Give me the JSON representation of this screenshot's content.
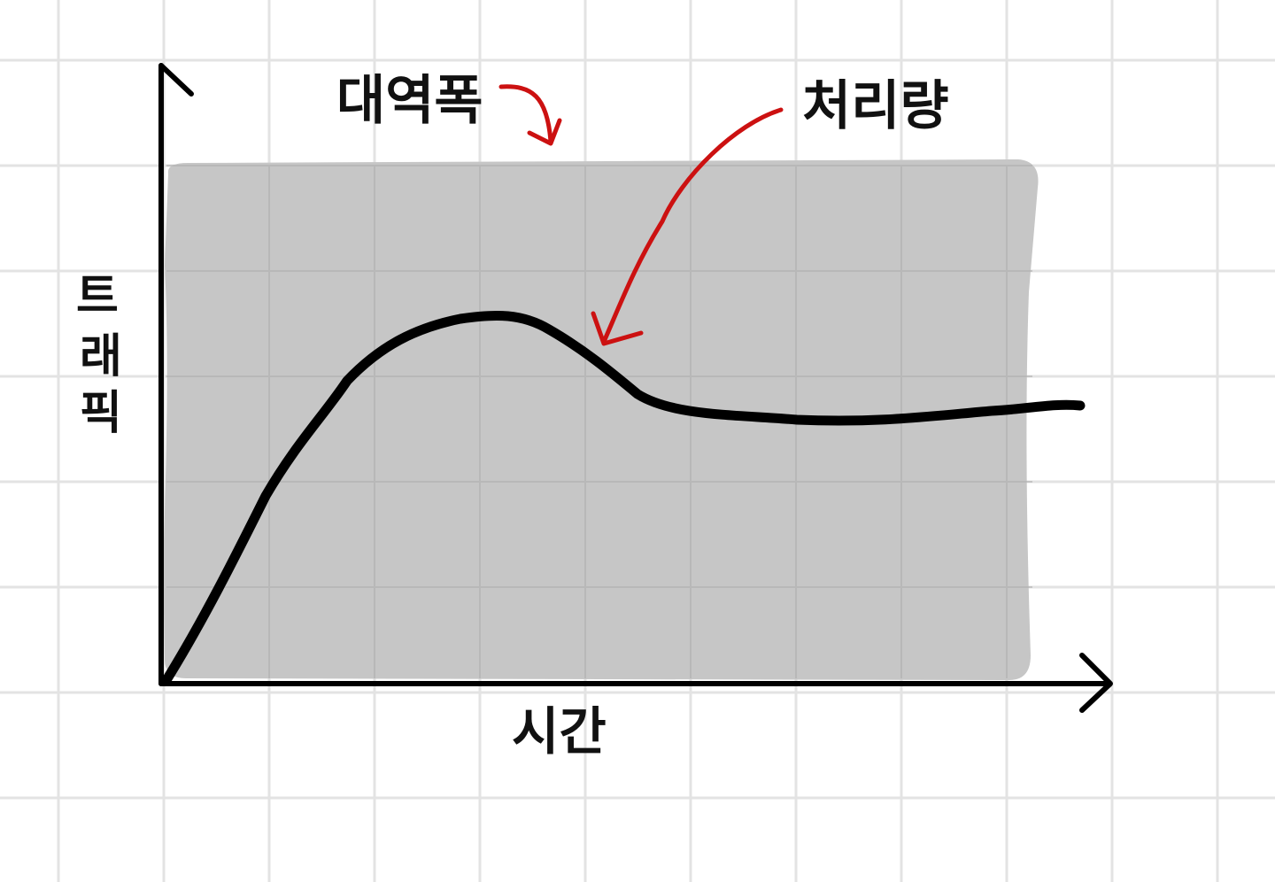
{
  "labels": {
    "bandwidth": "대역폭",
    "throughput": "처리량",
    "y_axis": "트래픽",
    "y_axis_chars": [
      "트",
      "래",
      "픽"
    ],
    "x_axis": "시간"
  },
  "colors": {
    "paper": "#ffffff",
    "grid": "#e3e3e3",
    "band": "#c6c6c6",
    "curve": "#000000",
    "arrow": "#cc1111",
    "text": "#111111"
  }
}
